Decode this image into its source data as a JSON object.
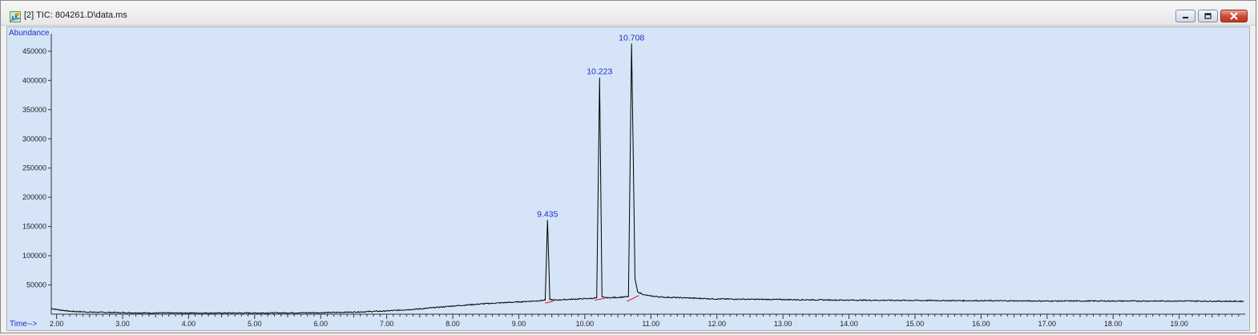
{
  "window": {
    "title": "[2] TIC: 804261.D\\data.ms",
    "icon": "chromatogram-app-icon",
    "controls": [
      "minimize",
      "maximize",
      "close"
    ]
  },
  "colors": {
    "plot_bg": "#d6e4f8",
    "trace": "#000000",
    "baseline_marker": "#e01010",
    "axis_label": "#2030c0"
  },
  "chart_data": {
    "type": "line",
    "title": "",
    "xlabel": "Time-->",
    "ylabel": "Abundance",
    "xlim": [
      1.92,
      20.0
    ],
    "ylim": [
      0,
      480000
    ],
    "x_ticks": [
      "2.00",
      "3.00",
      "4.00",
      "5.00",
      "6.00",
      "7.00",
      "8.00",
      "9.00",
      "10.00",
      "11.00",
      "12.00",
      "13.00",
      "14.00",
      "15.00",
      "16.00",
      "17.00",
      "18.00",
      "19.00"
    ],
    "y_ticks": [
      "50000",
      "100000",
      "150000",
      "200000",
      "250000",
      "300000",
      "350000",
      "400000",
      "450000"
    ],
    "peaks": [
      {
        "label": "9.435",
        "x": 9.435,
        "y": 161000
      },
      {
        "label": "10.223",
        "x": 10.223,
        "y": 405000
      },
      {
        "label": "10.708",
        "x": 10.708,
        "y": 463000
      }
    ],
    "series": [
      {
        "values_x": [
          1.92,
          2.0,
          2.2,
          2.5,
          3.0,
          3.5,
          4.0,
          5.0,
          6.0,
          6.5,
          7.0,
          7.5,
          8.0,
          8.5,
          9.0,
          9.3,
          9.4,
          9.435,
          9.47,
          9.55,
          9.7,
          9.9,
          10.1,
          10.18,
          10.223,
          10.26,
          10.35,
          10.55,
          10.66,
          10.708,
          10.76,
          10.8,
          10.9,
          11.0,
          11.2,
          11.5,
          12.0,
          13.0,
          14.0,
          15.0,
          16.0,
          17.0,
          18.0,
          19.0,
          19.98
        ],
        "values_y": [
          10000,
          8000,
          5000,
          3500,
          2500,
          2000,
          2000,
          2000,
          2500,
          3500,
          5500,
          9000,
          14000,
          18000,
          21000,
          23000,
          24000,
          161000,
          25000,
          24000,
          25000,
          26000,
          27000,
          28000,
          405000,
          29000,
          28000,
          29000,
          30000,
          463000,
          60000,
          38000,
          33000,
          31000,
          29000,
          28000,
          26000,
          25000,
          24000,
          23500,
          23000,
          22500,
          22500,
          22500,
          22000
        ]
      }
    ],
    "integration_baselines": [
      {
        "x": [
          9.4,
          9.52
        ],
        "y": [
          19000,
          22000
        ]
      },
      {
        "x": [
          10.15,
          10.3
        ],
        "y": [
          24000,
          27000
        ]
      },
      {
        "x": [
          10.64,
          10.82
        ],
        "y": [
          22000,
          32000
        ]
      }
    ],
    "grid": false,
    "legend": "none"
  }
}
